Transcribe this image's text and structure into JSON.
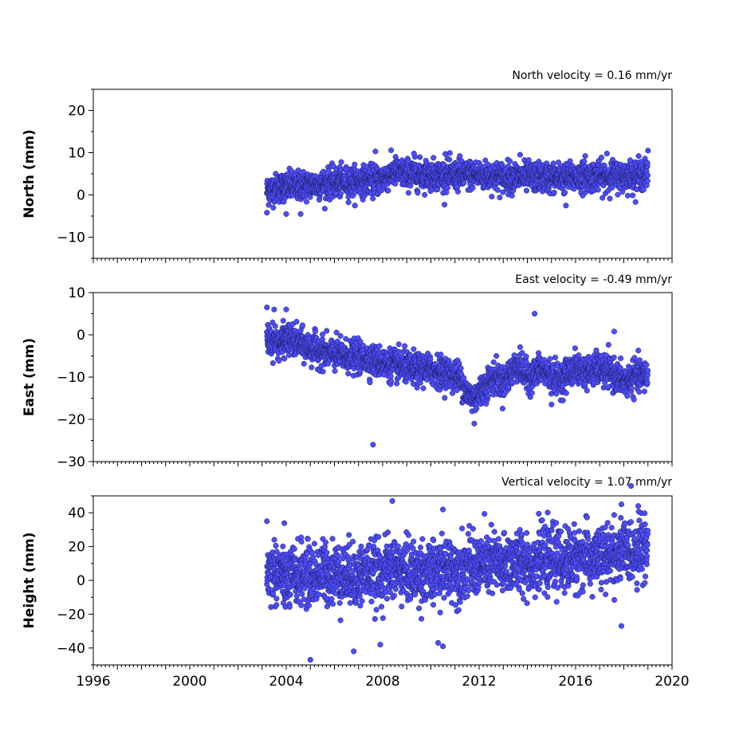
{
  "chart_data": [
    {
      "type": "scatter",
      "annotation": "North velocity = 0.16 mm/yr",
      "ylabel": "North (mm)",
      "ylim": [
        -15,
        25
      ],
      "yticks": [
        -10,
        0,
        10,
        20
      ],
      "ytick_labels": [
        "−10",
        "0",
        "10",
        "20"
      ],
      "xlim": [
        1996,
        2020
      ],
      "marker_color": "#4d4dff",
      "marker_edge": "#1a1a4d",
      "series": [
        {
          "x": [
            2003.2,
            2003.5,
            2003.8,
            2004.0,
            2004.3,
            2004.6,
            2004.9,
            2005.2,
            2005.5,
            2005.8,
            2006.1,
            2006.4,
            2006.7,
            2007.0,
            2007.3,
            2007.6,
            2007.9,
            2008.2,
            2008.5,
            2008.8,
            2009.1,
            2009.4,
            2009.7,
            2010.0,
            2010.3,
            2010.6,
            2010.9,
            2011.2,
            2011.5,
            2011.8,
            2012.1,
            2012.4,
            2012.7,
            2013.0,
            2013.3,
            2013.6,
            2013.9,
            2014.2,
            2014.5,
            2014.8,
            2015.1,
            2015.4,
            2015.7,
            2016.0,
            2016.3,
            2016.6,
            2016.9,
            2017.2,
            2017.5,
            2017.8,
            2018.1,
            2018.4,
            2018.7,
            2019.0
          ],
          "y": [
            1.0,
            1.5,
            1.8,
            2.0,
            2.0,
            2.2,
            2.3,
            2.5,
            2.6,
            2.8,
            3.0,
            3.1,
            3.2,
            3.3,
            3.4,
            3.5,
            3.6,
            4.5,
            5.5,
            5.0,
            5.0,
            4.8,
            4.9,
            4.7,
            4.8,
            4.5,
            4.6,
            4.6,
            4.7,
            4.8,
            4.6,
            4.5,
            4.4,
            4.3,
            4.3,
            4.2,
            4.3,
            4.2,
            4.1,
            4.2,
            4.0,
            4.1,
            4.1,
            4.2,
            4.3,
            4.3,
            4.4,
            4.4,
            4.5,
            4.5,
            4.6,
            4.7,
            4.8,
            4.9
          ],
          "outliers": [
            [
              2003.2,
              -4.2
            ],
            [
              2004.0,
              -4.5
            ],
            [
              2004.6,
              -4.5
            ],
            [
              2007.7,
              10.3
            ],
            [
              2009.3,
              9.8
            ],
            [
              2010.6,
              9.7
            ],
            [
              2011.2,
              9.2
            ],
            [
              2013.7,
              9.5
            ],
            [
              2015.6,
              -2.5
            ],
            [
              2016.4,
              9.2
            ],
            [
              2017.3,
              9.8
            ],
            [
              2019.0,
              10.5
            ]
          ]
        }
      ]
    },
    {
      "type": "scatter",
      "annotation": "East velocity = -0.49 mm/yr",
      "ylabel": "East (mm)",
      "ylim": [
        -30,
        10
      ],
      "yticks": [
        -30,
        -20,
        -10,
        0,
        10
      ],
      "ytick_labels": [
        "−30",
        "−20",
        "−10",
        "0",
        "10"
      ],
      "xlim": [
        1996,
        2020
      ],
      "marker_color": "#4d4dff",
      "marker_edge": "#1a1a4d",
      "series": [
        {
          "x": [
            2003.2,
            2003.5,
            2003.8,
            2004.0,
            2004.3,
            2004.6,
            2004.9,
            2005.2,
            2005.5,
            2005.8,
            2006.1,
            2006.4,
            2006.7,
            2007.0,
            2007.3,
            2007.6,
            2007.9,
            2008.2,
            2008.5,
            2008.8,
            2009.1,
            2009.4,
            2009.7,
            2010.0,
            2010.3,
            2010.6,
            2010.9,
            2011.2,
            2011.5,
            2011.8,
            2012.1,
            2012.4,
            2012.7,
            2013.0,
            2013.3,
            2013.6,
            2013.9,
            2014.2,
            2014.5,
            2014.8,
            2015.1,
            2015.4,
            2015.7,
            2016.0,
            2016.3,
            2016.6,
            2016.9,
            2017.2,
            2017.5,
            2017.8,
            2018.1,
            2018.4,
            2018.7,
            2019.0
          ],
          "y": [
            -1.0,
            -1.5,
            -2.0,
            -1.0,
            -1.5,
            -2.2,
            -3.0,
            -3.5,
            -4.0,
            -4.5,
            -4.8,
            -5.0,
            -5.2,
            -5.5,
            -5.6,
            -6.0,
            -6.5,
            -7.0,
            -7.2,
            -7.5,
            -8.0,
            -8.2,
            -8.0,
            -8.3,
            -8.5,
            -9.0,
            -9.5,
            -10.0,
            -14.0,
            -15.0,
            -13.0,
            -11.0,
            -10.0,
            -11.5,
            -9.0,
            -7.0,
            -9.5,
            -10.0,
            -8.0,
            -9.0,
            -10.0,
            -10.5,
            -9.0,
            -8.0,
            -8.5,
            -9.0,
            -8.0,
            -8.5,
            -9.0,
            -10.5,
            -11.0,
            -10.0,
            -9.5,
            -10.0
          ],
          "outliers": [
            [
              2003.2,
              6.5
            ],
            [
              2003.5,
              6.0
            ],
            [
              2004.0,
              6.0
            ],
            [
              2007.6,
              -26.0
            ],
            [
              2011.8,
              -21.0
            ],
            [
              2014.3,
              5.0
            ],
            [
              2017.6,
              0.8
            ],
            [
              2015.0,
              -16.5
            ]
          ]
        }
      ]
    },
    {
      "type": "scatter",
      "annotation": "Vertical velocity = 1.07 mm/yr",
      "ylabel": "Height (mm)",
      "ylim": [
        -50,
        50
      ],
      "yticks": [
        -40,
        -20,
        0,
        20,
        40
      ],
      "ytick_labels": [
        "−40",
        "−20",
        "0",
        "20",
        "40"
      ],
      "xlim": [
        1996,
        2020
      ],
      "xticks": [
        1996,
        2000,
        2004,
        2008,
        2012,
        2016,
        2020
      ],
      "xtick_labels": [
        "1996",
        "2000",
        "2004",
        "2008",
        "2012",
        "2016",
        "2020"
      ],
      "marker_color": "#4d4dff",
      "marker_edge": "#1a1a4d",
      "series": [
        {
          "x": [
            2003.2,
            2003.5,
            2003.8,
            2004.0,
            2004.3,
            2004.6,
            2004.9,
            2005.2,
            2005.5,
            2005.8,
            2006.1,
            2006.4,
            2006.7,
            2007.0,
            2007.3,
            2007.6,
            2007.9,
            2008.2,
            2008.5,
            2008.8,
            2009.1,
            2009.4,
            2009.7,
            2010.0,
            2010.3,
            2010.6,
            2010.9,
            2011.2,
            2011.5,
            2011.8,
            2012.1,
            2012.4,
            2012.7,
            2013.0,
            2013.3,
            2013.6,
            2013.9,
            2014.2,
            2014.5,
            2014.8,
            2015.1,
            2015.4,
            2015.7,
            2016.0,
            2016.3,
            2016.6,
            2016.9,
            2017.2,
            2017.5,
            2017.8,
            2018.1,
            2018.4,
            2018.7,
            2019.0
          ],
          "y": [
            5,
            5,
            4,
            0,
            2,
            4,
            3,
            2,
            5,
            4,
            5,
            3,
            4,
            2,
            6,
            5,
            3,
            6,
            8,
            6,
            5,
            4,
            6,
            2,
            7,
            6,
            8,
            5,
            9,
            8,
            10,
            9,
            11,
            7,
            12,
            10,
            12,
            9,
            13,
            11,
            14,
            10,
            13,
            12,
            15,
            11,
            14,
            12,
            16,
            15,
            18,
            17,
            20,
            18
          ],
          "outliers": [
            [
              2003.2,
              35
            ],
            [
              2005.0,
              -47
            ],
            [
              2006.8,
              -42
            ],
            [
              2007.9,
              -38
            ],
            [
              2008.4,
              47
            ],
            [
              2010.3,
              -37
            ],
            [
              2010.5,
              -39
            ],
            [
              2010.5,
              42
            ],
            [
              2017.9,
              45
            ],
            [
              2018.6,
              44
            ],
            [
              2017.9,
              -27
            ]
          ]
        }
      ]
    }
  ]
}
